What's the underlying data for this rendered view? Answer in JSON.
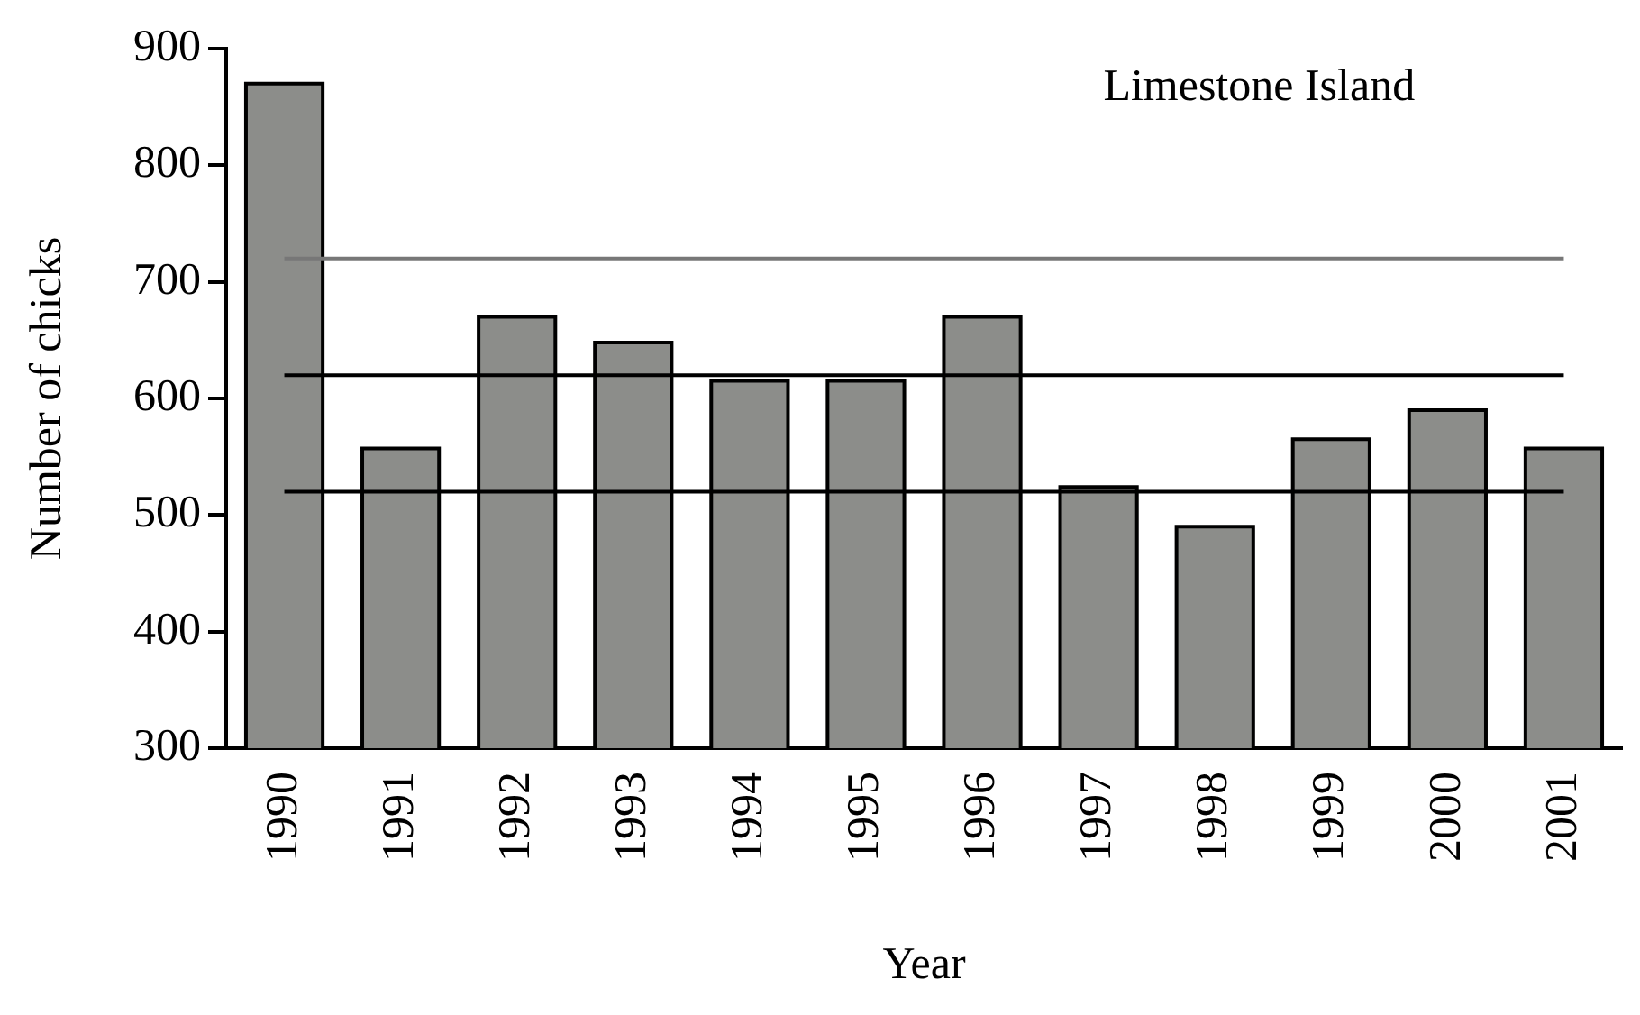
{
  "chart_data": {
    "type": "bar",
    "title": "Limestone Island",
    "xlabel": "Year",
    "ylabel": "Number of chicks",
    "categories": [
      "1990",
      "1991",
      "1992",
      "1993",
      "1994",
      "1995",
      "1996",
      "1997",
      "1998",
      "1999",
      "2000",
      "2001"
    ],
    "values": [
      870,
      557,
      670,
      648,
      615,
      615,
      670,
      524,
      490,
      565,
      590,
      557
    ],
    "color": "#8c8d8a",
    "ylim": [
      300,
      900
    ],
    "yticks": [
      300,
      400,
      500,
      600,
      700,
      800,
      900
    ],
    "grid": false,
    "legend": false,
    "ref_lines": [
      {
        "axis": "y",
        "value": 720,
        "color": "#777777"
      },
      {
        "axis": "y",
        "value": 620,
        "color": "#000000"
      },
      {
        "axis": "y",
        "value": 520,
        "color": "#000000"
      }
    ]
  }
}
